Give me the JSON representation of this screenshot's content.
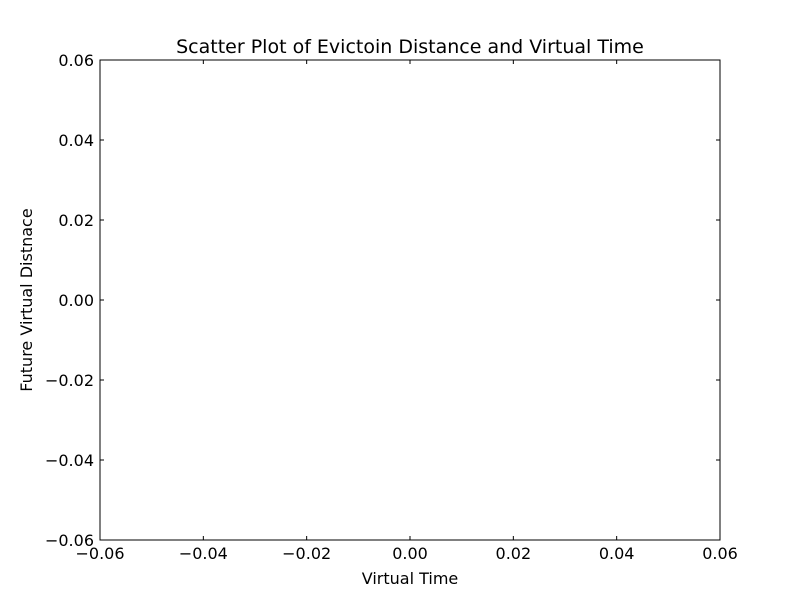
{
  "chart_data": {
    "type": "scatter",
    "title": "Scatter Plot of Evictoin Distance and Virtual Time",
    "xlabel": "Virtual Time",
    "ylabel": "Future Virtual Distnace",
    "xlim": [
      -0.06,
      0.06
    ],
    "ylim": [
      -0.06,
      0.06
    ],
    "xticks": [
      -0.06,
      -0.04,
      -0.02,
      0.0,
      0.02,
      0.04,
      0.06
    ],
    "yticks": [
      -0.06,
      -0.04,
      -0.02,
      0.0,
      0.02,
      0.04,
      0.06
    ],
    "xtick_labels": [
      "−0.06",
      "−0.04",
      "−0.02",
      "0.00",
      "0.02",
      "0.04",
      "0.06"
    ],
    "ytick_labels": [
      "−0.06",
      "−0.04",
      "−0.02",
      "0.00",
      "0.02",
      "0.04",
      "0.06"
    ],
    "grid": false,
    "series": [
      {
        "x": [],
        "y": []
      }
    ]
  }
}
